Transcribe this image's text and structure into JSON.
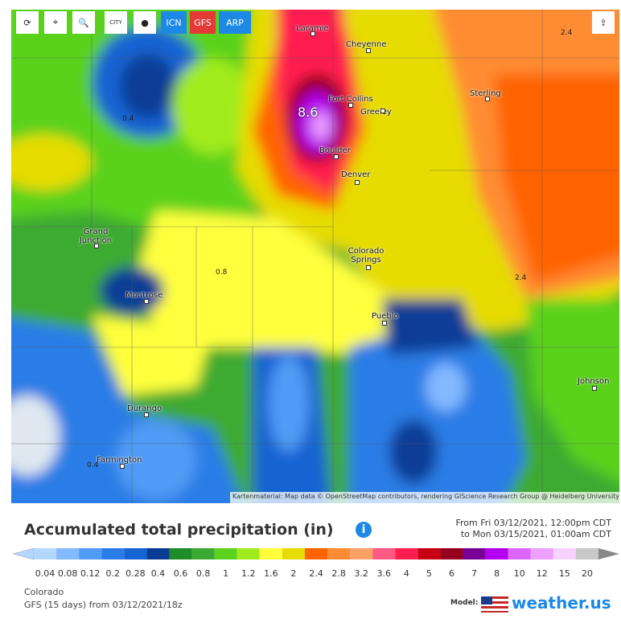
{
  "toolbar": {
    "city_icon": "CITY",
    "models": [
      "ICN",
      "GFS",
      "ARP"
    ]
  },
  "map": {
    "cities": [
      "Laramie",
      "Cheyenne",
      "Fort Collins",
      "Greeley",
      "Sterling",
      "Boulder",
      "Denver",
      "Grand Junction",
      "Colorado Springs",
      "Montrose",
      "Pueblo",
      "Johnson",
      "Durango",
      "Farmington"
    ],
    "value_labels": [
      "8.6",
      "0.4",
      "2.4",
      "2.4",
      "0.8",
      "0.4"
    ],
    "attribution": "Kartenmaterial: Map data © OpenStreetMap contributors, rendering GIScience Research Group @ Heidelberg University"
  },
  "header": {
    "title": "Accumulated total precipitation (in)",
    "from": "From Fri 03/12/2021, 12:00pm CDT",
    "to": "to Mon 03/15/2021, 01:00am CDT"
  },
  "legend": [
    {
      "label": "0.04",
      "color": "#b4d7ff"
    },
    {
      "label": "0.08",
      "color": "#82b9ff"
    },
    {
      "label": "0.12",
      "color": "#4f9bf5"
    },
    {
      "label": "0.2",
      "color": "#2a7de6"
    },
    {
      "label": "0.28",
      "color": "#1464d2"
    },
    {
      "label": "0.4",
      "color": "#0a3c96"
    },
    {
      "label": "0.6",
      "color": "#1e8c28"
    },
    {
      "label": "0.8",
      "color": "#3caa32"
    },
    {
      "label": "1",
      "color": "#5ad21e"
    },
    {
      "label": "1.2",
      "color": "#a0eb1e"
    },
    {
      "label": "1.6",
      "color": "#ffff3c"
    },
    {
      "label": "2",
      "color": "#e6dc00"
    },
    {
      "label": "2.4",
      "color": "#ff6400"
    },
    {
      "label": "2.8",
      "color": "#ff8c32"
    },
    {
      "label": "3.2",
      "color": "#ffa064"
    },
    {
      "label": "3.6",
      "color": "#ff5a82"
    },
    {
      "label": "4",
      "color": "#ff1e50"
    },
    {
      "label": "5",
      "color": "#c80014"
    },
    {
      "label": "6",
      "color": "#96001e"
    },
    {
      "label": "7",
      "color": "#780096"
    },
    {
      "label": "8",
      "color": "#b400f0"
    },
    {
      "label": "10",
      "color": "#dc64ff"
    },
    {
      "label": "12",
      "color": "#eca0ff"
    },
    {
      "label": "15",
      "color": "#f5d2ff"
    },
    {
      "label": "20",
      "color": "#c8c8c8"
    }
  ],
  "footer": {
    "region": "Colorado",
    "run": "GFS (15 days) from 03/12/2021/18z",
    "model_label": "Model:",
    "brand": "weather.us"
  }
}
